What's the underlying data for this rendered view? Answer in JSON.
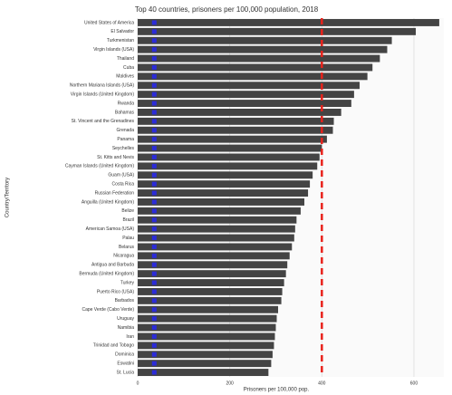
{
  "chart_data": {
    "type": "bar",
    "orientation": "horizontal",
    "title": "Top 40 countries, prisoners per 100,000 population, 2018",
    "xlabel": "Prisoners per 100,000 pop.",
    "ylabel": "Country/Territory",
    "categories": [
      "United States of America",
      "El Salvador",
      "Turkmenistan",
      "Virgin Islands (USA)",
      "Thailand",
      "Cuba",
      "Maldives",
      "Northern Mariana Islands (USA)",
      "Virgin Islands (United Kingdom)",
      "Rwanda",
      "Bahamas",
      "St. Vincent and the Grenadines",
      "Grenada",
      "Panama",
      "Seychelles",
      "St. Kitts and Nevis",
      "Cayman Islands (United Kingdom)",
      "Guam (USA)",
      "Costa Rica",
      "Russian Federation",
      "Anguilla (United Kingdom)",
      "Belize",
      "Brazil",
      "American Samoa (USA)",
      "Palau",
      "Belarus",
      "Nicaragua",
      "Antigua and Barbuda",
      "Bermuda (United Kingdom)",
      "Turkey",
      "Puerto Rico (USA)",
      "Barbados",
      "Cape Verde (Cabo Verde)",
      "Uruguay",
      "Namibia",
      "Iran",
      "Trinidad and Tobago",
      "Dominica",
      "Eswatini",
      "St. Lucia"
    ],
    "values": [
      655,
      604,
      552,
      542,
      526,
      510,
      499,
      482,
      470,
      464,
      442,
      426,
      424,
      411,
      400,
      395,
      390,
      380,
      374,
      370,
      362,
      354,
      345,
      342,
      340,
      335,
      330,
      325,
      322,
      318,
      314,
      312,
      305,
      302,
      300,
      298,
      296,
      293,
      290,
      284
    ],
    "color": "#444444",
    "reference_markers": {
      "color": "#2b2bd9",
      "values": [
        36,
        36,
        36,
        36,
        36,
        36,
        36,
        36,
        36,
        36,
        36,
        36,
        36,
        36,
        36,
        36,
        36,
        36,
        36,
        36,
        36,
        36,
        36,
        36,
        36,
        36,
        36,
        36,
        36,
        36,
        36,
        36,
        36,
        36,
        36,
        36,
        36,
        36,
        36,
        36
      ]
    },
    "reference_line": {
      "value": 400,
      "color": "#e8221b"
    },
    "xlim": [
      0,
      665
    ],
    "xticks": [
      0,
      200,
      400,
      600
    ],
    "grid": true
  }
}
